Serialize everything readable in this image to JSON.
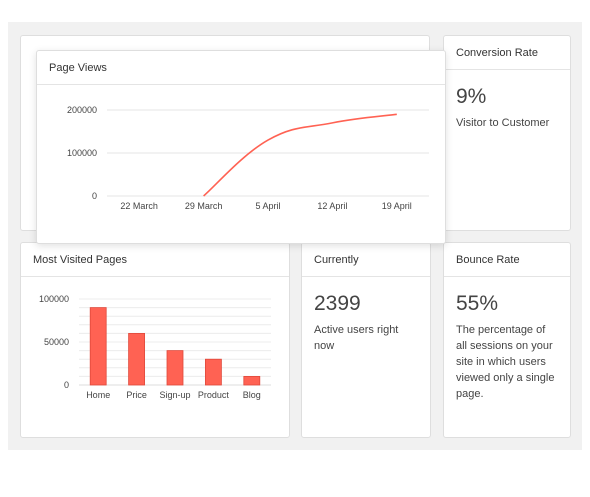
{
  "page_views": {
    "title": "Page Views"
  },
  "conversion": {
    "title": "Conversion Rate",
    "value": "9%",
    "description": "Visitor to Customer"
  },
  "most_visited": {
    "title": "Most Visited Pages"
  },
  "currently": {
    "title": "Currently",
    "value": "2399",
    "description": "Active users right now"
  },
  "bounce": {
    "title": "Bounce Rate",
    "value": "55%",
    "description": "The percentage of all sessions on your site in which users viewed only a single page."
  },
  "colors": {
    "accent": "#ff6253",
    "background": "#f1f1f1",
    "card": "#ffffff"
  },
  "chart_data": [
    {
      "id": "page-views",
      "type": "line",
      "title": "Page Views",
      "x": [
        "22 March",
        "29 March",
        "5 April",
        "12 April",
        "19 April"
      ],
      "series": [
        {
          "x": [
            "29 March",
            "5 April",
            "12 April",
            "19 April"
          ],
          "values": [
            0,
            130000,
            170000,
            190000
          ]
        }
      ],
      "yticks": [
        0,
        100000,
        200000
      ],
      "ylim": [
        0,
        200000
      ],
      "grid": true,
      "color": "#ff6253"
    },
    {
      "id": "most-visited",
      "type": "bar",
      "title": "Most Visited Pages",
      "categories": [
        "Home",
        "Price",
        "Sign-up",
        "Product",
        "Blog"
      ],
      "values": [
        90000,
        60000,
        40000,
        30000,
        10000
      ],
      "yticks": [
        0,
        50000,
        100000
      ],
      "ylim": [
        0,
        100000
      ],
      "grid": true,
      "color": "#ff6253"
    }
  ]
}
